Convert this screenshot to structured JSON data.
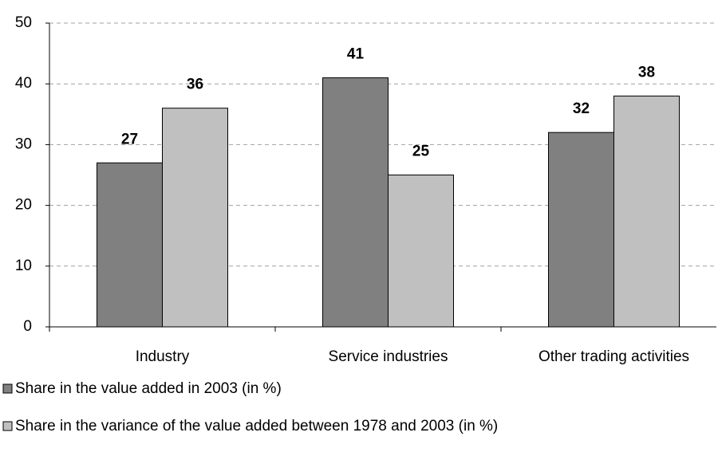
{
  "chart_data": {
    "type": "bar",
    "categories": [
      "Industry",
      "Service industries",
      "Other trading activities"
    ],
    "series": [
      {
        "name": "Share in the value added in 2003 (in %)",
        "color": "#808080",
        "values": [
          27,
          41,
          32
        ]
      },
      {
        "name": "Share in the variance of the value added between 1978 and 2003 (in %)",
        "color": "#c0c0c0",
        "values": [
          36,
          25,
          38
        ]
      }
    ],
    "ylim": [
      0,
      50
    ],
    "yticks": [
      0,
      10,
      20,
      30,
      40,
      50
    ],
    "grid": true,
    "legend": "bottom"
  }
}
